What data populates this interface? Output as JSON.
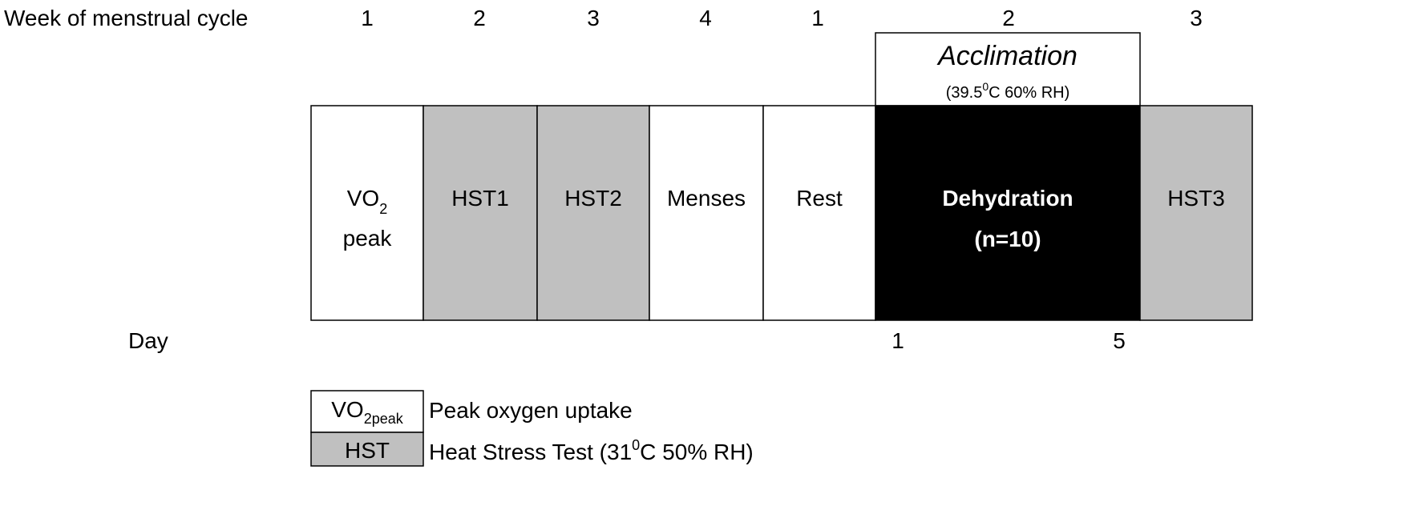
{
  "header": {
    "label": "Week of menstrual  cycle",
    "weeks": [
      "1",
      "2",
      "3",
      "4",
      "1",
      "2",
      "3"
    ]
  },
  "acclimation": {
    "title": "Acclimation",
    "condition": [
      "(39.5",
      "0",
      "C 60% RH)"
    ]
  },
  "phases": [
    {
      "label": [
        "VO",
        "2"
      ],
      "label2": "peak"
    },
    {
      "label": "HST1"
    },
    {
      "label": "HST2"
    },
    {
      "label": "Menses"
    },
    {
      "label": "Rest"
    },
    {
      "label": "Dehydration",
      "label2": "(n=10)"
    },
    {
      "label": "HST3"
    }
  ],
  "days": {
    "label": "Day",
    "start": "1",
    "end": "5"
  },
  "legend": [
    {
      "key": [
        "VO",
        "2peak"
      ],
      "desc": "Peak oxygen uptake"
    },
    {
      "key": "HST",
      "desc": [
        "Heat Stress Test (31",
        "0",
        "C 50% RH)"
      ]
    }
  ]
}
